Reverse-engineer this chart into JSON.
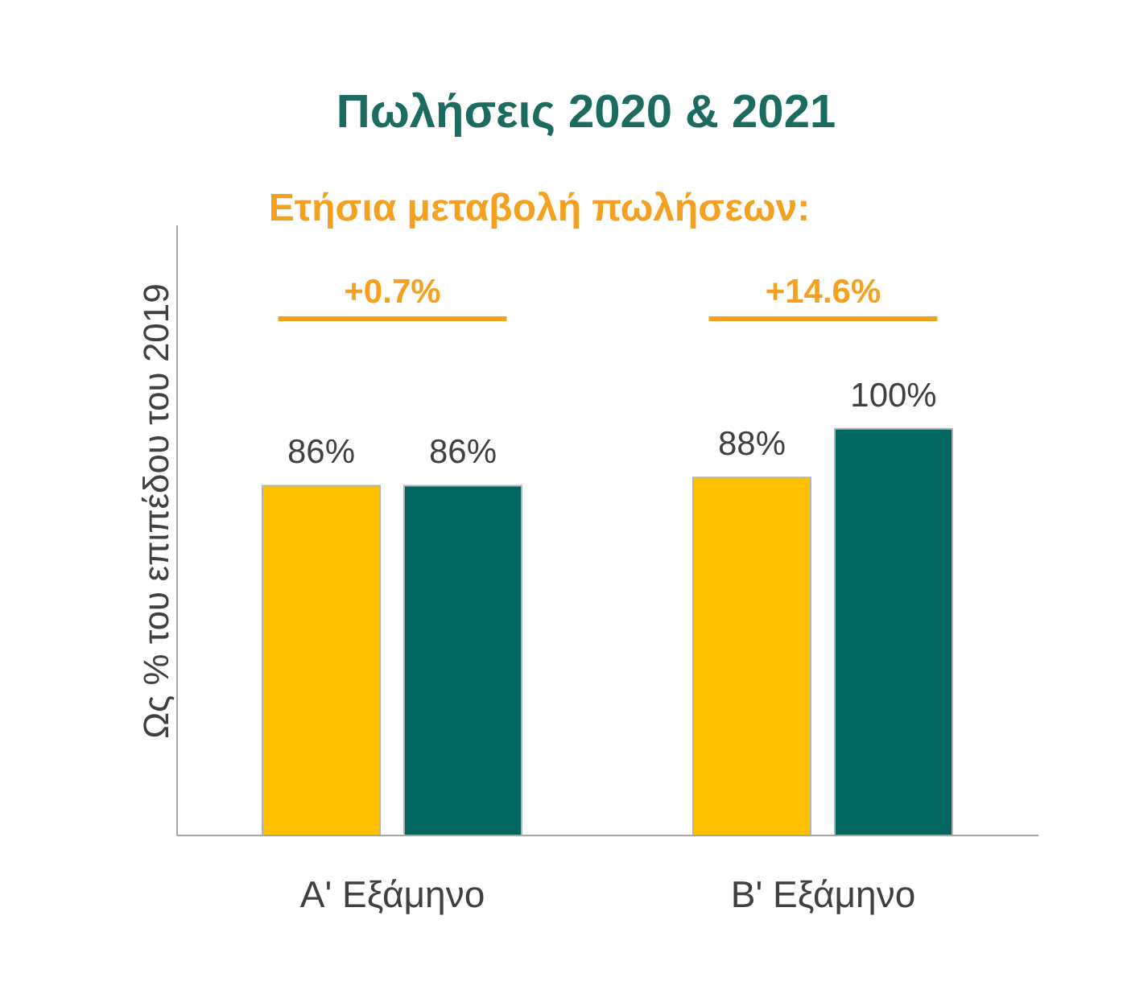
{
  "chart_data": {
    "type": "bar",
    "title": "Πωλήσεις 2020 & 2021",
    "subtitle": "Ετήσια μεταβολή πωλήσεων:",
    "ylabel": "Ως % του επιπέδου του 2019",
    "categories": [
      "Α' Εξάμηνο",
      "Β' Εξάμηνο"
    ],
    "series": [
      {
        "color": "#ffc000",
        "values": [
          86,
          88
        ],
        "value_labels": [
          "86%",
          "88%"
        ]
      },
      {
        "color": "#00665f",
        "values": [
          86,
          100
        ],
        "value_labels": [
          "86%",
          "100%"
        ]
      }
    ],
    "ylim": [
      0,
      150
    ],
    "annotations": [
      "+0.7%",
      "+14.6%"
    ]
  }
}
